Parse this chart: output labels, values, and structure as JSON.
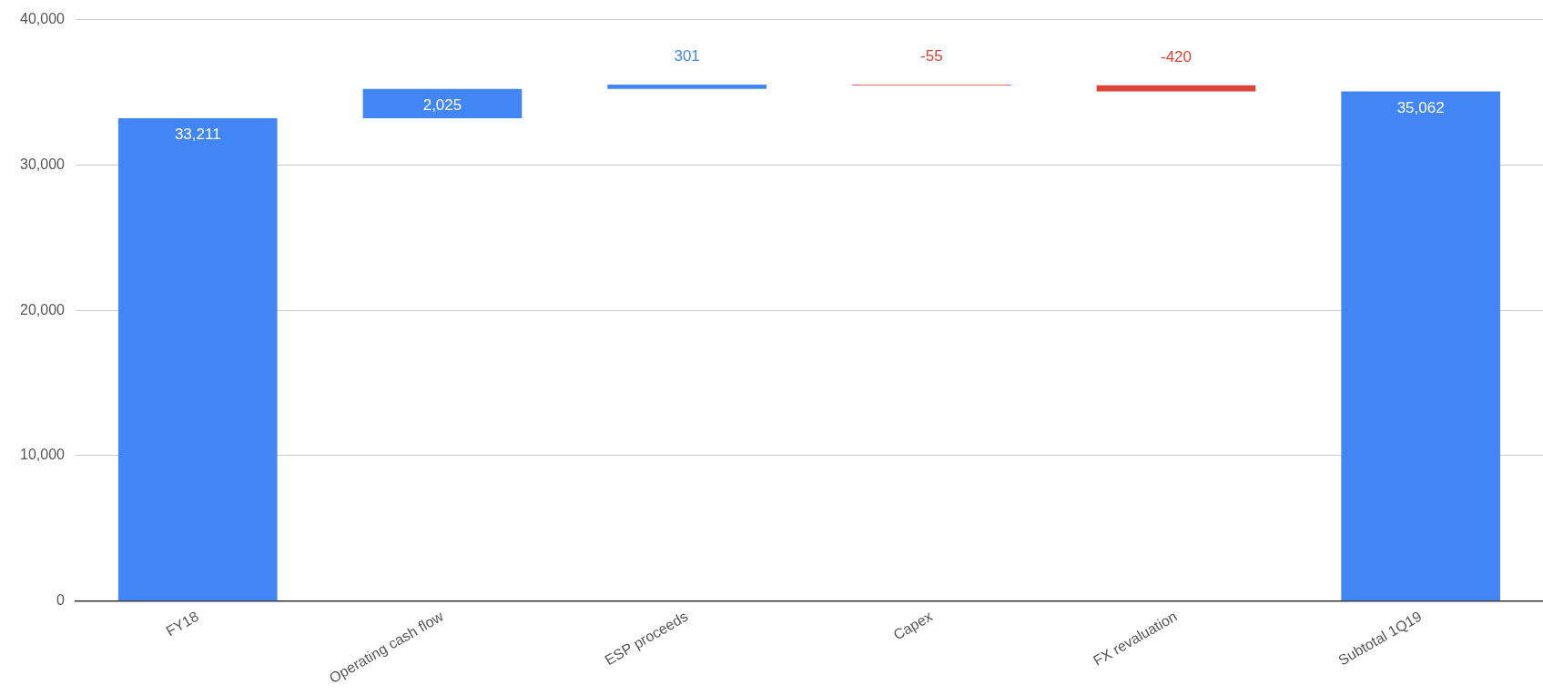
{
  "chart_data": {
    "type": "bar",
    "categories": [
      "FY18",
      "Operating cash flow",
      "ESP proceeds",
      "Capex",
      "FX revaluation",
      "Subtotal 1Q19"
    ],
    "values": [
      33211,
      2025,
      301,
      -55,
      -420,
      35062
    ],
    "value_labels": [
      "33,211",
      "2,025",
      "301",
      "-55",
      "-420",
      "35,062"
    ],
    "base": [
      0,
      33211,
      35236,
      35537,
      35482,
      0
    ],
    "colors": [
      "#4285f4",
      "#4285f4",
      "#4285f4",
      "#db4437",
      "#db4437",
      "#4285f4"
    ],
    "ylim": [
      0,
      40000
    ],
    "yticks": [
      0,
      {
        "value": 10000,
        "label": "10,000"
      },
      {
        "value": 20000,
        "label": "20,000"
      },
      {
        "value": 30000,
        "label": "30,000"
      },
      {
        "value": 40000,
        "label": "40,000"
      }
    ],
    "grid": "y",
    "legend": false
  }
}
